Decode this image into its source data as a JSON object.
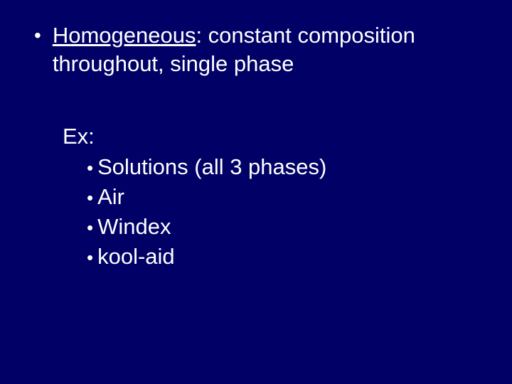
{
  "slide": {
    "background_color": "#000066",
    "text_color": "#ffffff",
    "font_family": "Comic Sans MS",
    "main_bullet": {
      "term": "Homogeneous",
      "rest": ":  constant composition throughout, single phase"
    },
    "example_label": "Ex:",
    "examples": [
      "Solutions (all 3 phases)",
      "Air",
      "Windex",
      "kool-aid"
    ]
  }
}
